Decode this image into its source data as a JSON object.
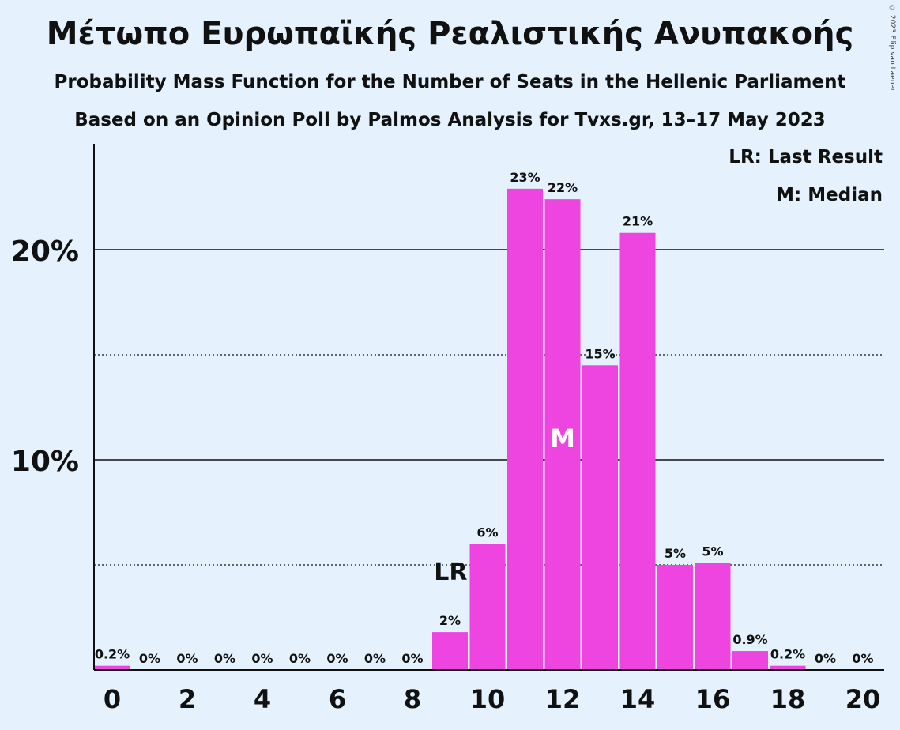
{
  "title": "Μέτωπο Ευρωπαϊκής Ρεαλιστικής Ανυπακοής",
  "subtitle1": "Probability Mass Function for the Number of Seats in the Hellenic Parliament",
  "subtitle2": "Based on an Opinion Poll by Palmos Analysis for Tvxs.gr, 13–17 May 2023",
  "copyright": "© 2023 Filip van Laenen",
  "legend": {
    "last_result": "LR: Last Result",
    "median": "M: Median"
  },
  "colors": {
    "bar": "#ee44e0",
    "background": "#e5f2fd"
  },
  "chart_data": {
    "type": "bar",
    "categories": [
      0,
      1,
      2,
      3,
      4,
      5,
      6,
      7,
      8,
      9,
      10,
      11,
      12,
      13,
      14,
      15,
      16,
      17,
      18,
      19,
      20
    ],
    "values": [
      0.2,
      0,
      0,
      0,
      0,
      0,
      0,
      0,
      0,
      1.8,
      6.0,
      22.9,
      22.4,
      14.5,
      20.8,
      5.0,
      5.1,
      0.9,
      0.2,
      0,
      0
    ],
    "value_labels": [
      "0.2%",
      "0%",
      "0%",
      "0%",
      "0%",
      "0%",
      "0%",
      "0%",
      "0%",
      "2%",
      "6%",
      "23%",
      "22%",
      "15%",
      "21%",
      "5%",
      "5%",
      "0.9%",
      "0.2%",
      "0%",
      "0%"
    ],
    "x_tick_labels": [
      "0",
      "2",
      "4",
      "6",
      "8",
      "10",
      "12",
      "14",
      "16",
      "18",
      "20"
    ],
    "y_tick_labels": [
      "10%",
      "20%"
    ],
    "ylim": [
      0,
      25
    ],
    "solid_gridlines": [
      10,
      20
    ],
    "dotted_gridlines": [
      5,
      15
    ],
    "last_result": {
      "seats": 9,
      "label": "LR"
    },
    "median": {
      "seats": 12,
      "label": "M"
    }
  }
}
